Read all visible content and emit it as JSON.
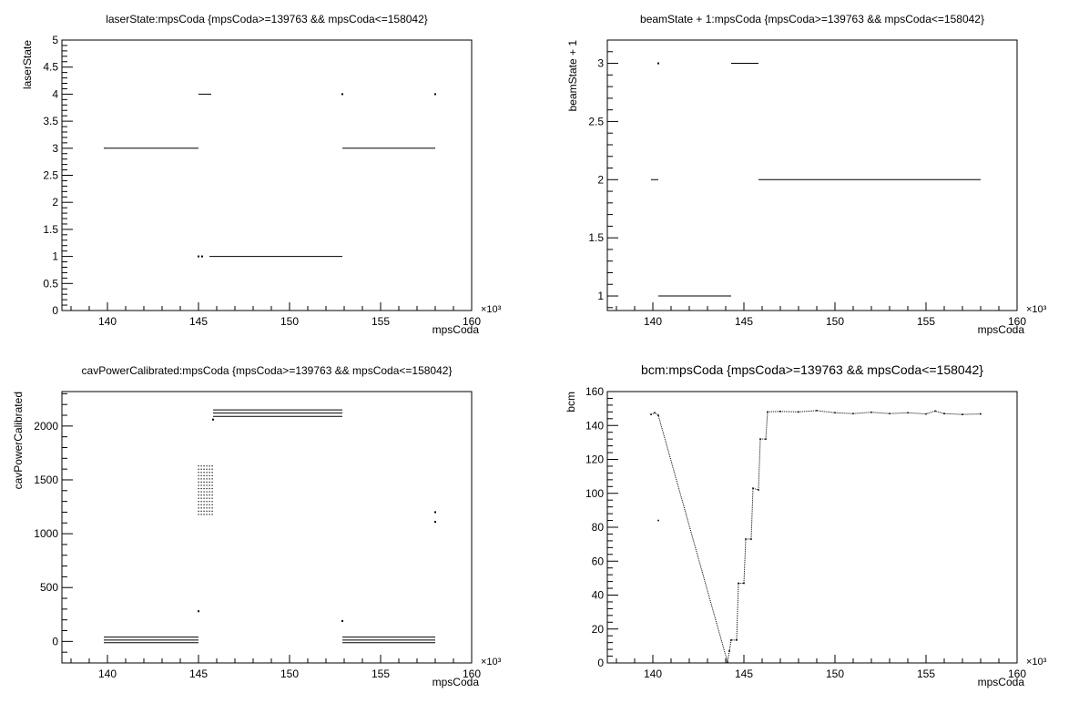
{
  "chart_data": [
    {
      "type": "scatter",
      "title": "laserState:mpsCoda {mpsCoda>=139763 && mpsCoda<=158042}",
      "xlabel": "mpsCoda",
      "ylabel": "laserState",
      "x_exponent_label": "×10³",
      "xlim": [
        137.5,
        160.0
      ],
      "ylim": [
        0,
        5
      ],
      "x_ticks": [
        140,
        145,
        150,
        155,
        160
      ],
      "x_tick_labels": [
        "140",
        "145",
        "150",
        "155",
        "160"
      ],
      "y_ticks": [
        0,
        0.5,
        1,
        1.5,
        2,
        2.5,
        3,
        3.5,
        4,
        4.5,
        5
      ],
      "y_tick_labels": [
        "0",
        "0.5",
        "1",
        "1.5",
        "2",
        "2.5",
        "3",
        "3.5",
        "4",
        "4.5",
        "5"
      ],
      "grid": false,
      "segments": [
        {
          "x0": 139.8,
          "x1": 145.0,
          "y": 3
        },
        {
          "x0": 145.0,
          "x1": 145.7,
          "y": 4
        },
        {
          "x0": 145.6,
          "x1": 152.9,
          "y": 1
        },
        {
          "x0": 152.9,
          "x1": 158.0,
          "y": 3
        }
      ],
      "points": [
        {
          "x": 145.0,
          "y": 1
        },
        {
          "x": 145.2,
          "y": 1
        },
        {
          "x": 152.9,
          "y": 4
        },
        {
          "x": 158.0,
          "y": 4
        }
      ]
    },
    {
      "type": "scatter",
      "title": "beamState + 1:mpsCoda {mpsCoda>=139763 && mpsCoda<=158042}",
      "xlabel": "mpsCoda",
      "ylabel": "beamState + 1",
      "x_exponent_label": "×10³",
      "xlim": [
        137.5,
        160.0
      ],
      "ylim": [
        0.875,
        3.2
      ],
      "x_ticks": [
        140,
        145,
        150,
        155,
        160
      ],
      "x_tick_labels": [
        "140",
        "145",
        "150",
        "155",
        "160"
      ],
      "y_ticks": [
        1,
        1.5,
        2,
        2.5,
        3
      ],
      "y_tick_labels": [
        "1",
        "1.5",
        "2",
        "2.5",
        "3"
      ],
      "grid": false,
      "segments": [
        {
          "x0": 139.9,
          "x1": 140.3,
          "y": 2
        },
        {
          "x0": 140.3,
          "x1": 144.3,
          "y": 1
        },
        {
          "x0": 144.3,
          "x1": 145.8,
          "y": 3
        },
        {
          "x0": 145.8,
          "x1": 158.0,
          "y": 2
        }
      ],
      "points": [
        {
          "x": 140.3,
          "y": 3
        }
      ]
    },
    {
      "type": "scatter",
      "title": "cavPowerCalibrated:mpsCoda {mpsCoda>=139763 && mpsCoda<=158042}",
      "xlabel": "mpsCoda",
      "ylabel": "cavPowerCalibrated",
      "x_exponent_label": "×10³",
      "xlim": [
        137.5,
        160.0
      ],
      "ylim": [
        -200,
        2320
      ],
      "x_ticks": [
        140,
        145,
        150,
        155,
        160
      ],
      "x_tick_labels": [
        "140",
        "145",
        "150",
        "155",
        "160"
      ],
      "y_ticks": [
        0,
        500,
        1000,
        1500,
        2000
      ],
      "y_tick_labels": [
        "0",
        "500",
        "1000",
        "1500",
        "2000"
      ],
      "grid": false,
      "segments": [
        {
          "x0": 139.8,
          "x1": 145.0,
          "y": 40
        },
        {
          "x0": 139.8,
          "x1": 145.0,
          "y": 12
        },
        {
          "x0": 139.8,
          "x1": 145.0,
          "y": -12
        },
        {
          "x0": 145.8,
          "x1": 152.9,
          "y": 2150
        },
        {
          "x0": 145.8,
          "x1": 152.9,
          "y": 2120
        },
        {
          "x0": 145.8,
          "x1": 152.9,
          "y": 2090
        },
        {
          "x0": 152.9,
          "x1": 158.0,
          "y": 40
        },
        {
          "x0": 152.9,
          "x1": 158.0,
          "y": 12
        },
        {
          "x0": 152.9,
          "x1": 158.0,
          "y": -12
        }
      ],
      "points": [
        {
          "x": 145.0,
          "y": 280
        },
        {
          "x": 152.9,
          "y": 190
        },
        {
          "x": 158.0,
          "y": 1200
        },
        {
          "x": 158.0,
          "y": 1110
        },
        {
          "x": 145.8,
          "y": 2060
        }
      ],
      "clusters": [
        {
          "x0": 145.0,
          "x1": 145.75,
          "y0": 1180,
          "y1": 1650
        }
      ]
    },
    {
      "type": "scatter",
      "title": "bcm:mpsCoda {mpsCoda>=139763 && mpsCoda<=158042}",
      "xlabel": "mpsCoda",
      "ylabel": "bcm",
      "x_exponent_label": "×10³",
      "xlim": [
        137.5,
        160.0
      ],
      "ylim": [
        0,
        160
      ],
      "x_ticks": [
        140,
        145,
        150,
        155,
        160
      ],
      "x_tick_labels": [
        "140",
        "145",
        "150",
        "155",
        "160"
      ],
      "y_ticks": [
        0,
        20,
        40,
        60,
        80,
        100,
        120,
        140,
        160
      ],
      "y_tick_labels": [
        "0",
        "20",
        "40",
        "60",
        "80",
        "100",
        "120",
        "140",
        "160"
      ],
      "grid": false,
      "series_points": [
        {
          "x": 139.9,
          "y": 146.5
        },
        {
          "x": 140.1,
          "y": 147.5
        },
        {
          "x": 140.3,
          "y": 146
        },
        {
          "x": 140.3,
          "y": 84
        },
        {
          "x": 144.1,
          "y": 0.5
        },
        {
          "x": 144.2,
          "y": 7
        },
        {
          "x": 144.3,
          "y": 13.5
        },
        {
          "x": 144.6,
          "y": 13.5
        },
        {
          "x": 144.7,
          "y": 47
        },
        {
          "x": 145.0,
          "y": 47
        },
        {
          "x": 145.1,
          "y": 73
        },
        {
          "x": 145.4,
          "y": 73
        },
        {
          "x": 145.5,
          "y": 103
        },
        {
          "x": 145.8,
          "y": 102
        },
        {
          "x": 145.9,
          "y": 132
        },
        {
          "x": 146.2,
          "y": 132
        },
        {
          "x": 146.3,
          "y": 148
        },
        {
          "x": 147.0,
          "y": 148.3
        },
        {
          "x": 148.0,
          "y": 148.0
        },
        {
          "x": 149.0,
          "y": 148.8
        },
        {
          "x": 150.0,
          "y": 147.5
        },
        {
          "x": 151.0,
          "y": 147.0
        },
        {
          "x": 152.0,
          "y": 147.8
        },
        {
          "x": 153.0,
          "y": 147.0
        },
        {
          "x": 154.0,
          "y": 147.5
        },
        {
          "x": 155.0,
          "y": 146.8
        },
        {
          "x": 155.5,
          "y": 148.5
        },
        {
          "x": 156.0,
          "y": 147.0
        },
        {
          "x": 157.0,
          "y": 146.5
        },
        {
          "x": 158.0,
          "y": 146.8
        }
      ]
    }
  ]
}
